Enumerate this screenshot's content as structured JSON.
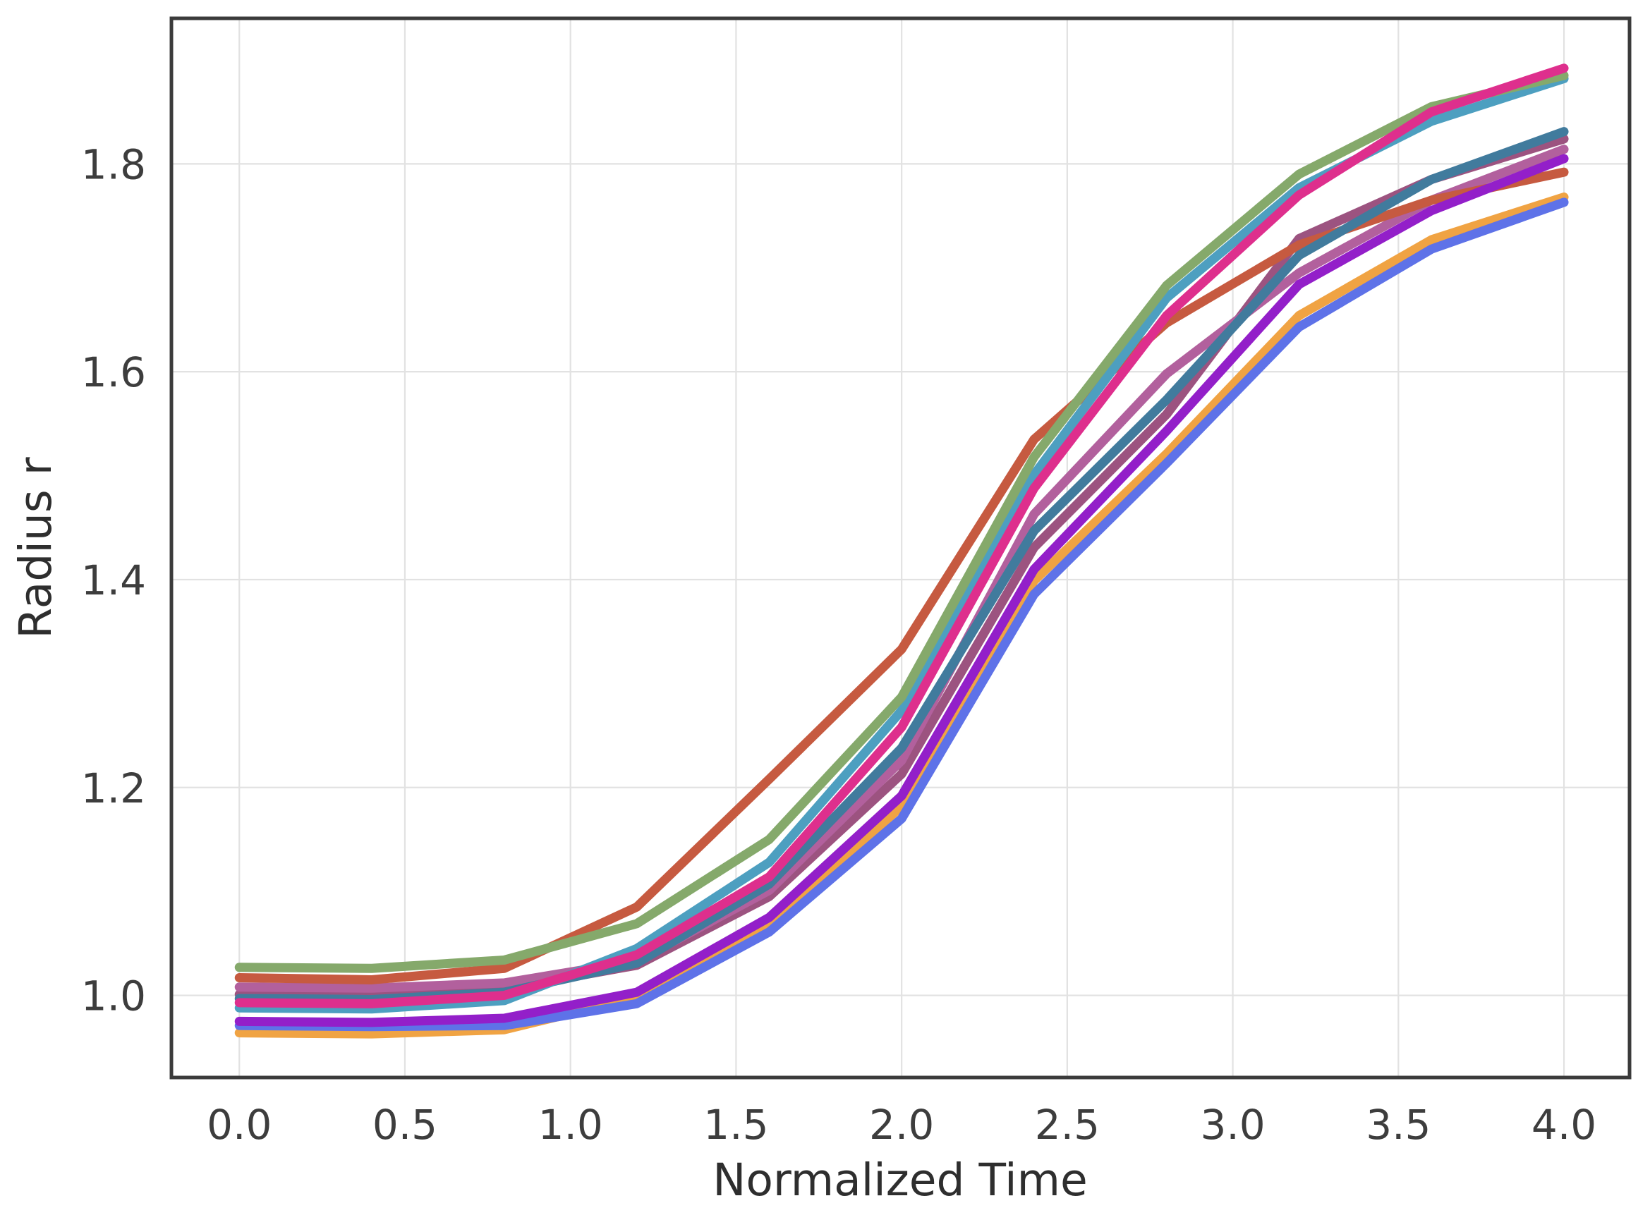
{
  "figure": {
    "background": "#ffffff"
  },
  "chart_data": {
    "type": "line",
    "title": "",
    "xlabel": "Normalized Time",
    "ylabel": "Radius r",
    "grid": true,
    "legend": "none",
    "xlim": [
      -0.205,
      4.198
    ],
    "ylim": [
      0.921,
      1.94
    ],
    "xticks": {
      "values": [
        0.0,
        0.5,
        1.0,
        1.5,
        2.0,
        2.5,
        3.0,
        3.5,
        4.0
      ],
      "labels": [
        "0.0",
        "0.5",
        "1.0",
        "1.5",
        "2.0",
        "2.5",
        "3.0",
        "3.5",
        "4.0"
      ]
    },
    "yticks": {
      "values": [
        1.0,
        1.2,
        1.4,
        1.6,
        1.8
      ],
      "labels": [
        "1.0",
        "1.2",
        "1.4",
        "1.6",
        "1.8"
      ]
    },
    "x": [
      0.0,
      0.4,
      0.8,
      1.2,
      1.6,
      2.0,
      2.4,
      2.8,
      3.2,
      3.6,
      4.0
    ],
    "series": [
      {
        "name": "amber",
        "color": "#f0a343",
        "values": [
          0.964,
          0.963,
          0.967,
          0.998,
          1.068,
          1.182,
          1.399,
          1.521,
          1.654,
          1.727,
          1.768
        ]
      },
      {
        "name": "cornflower-blue",
        "color": "#5e72e8",
        "values": [
          0.971,
          0.97,
          0.971,
          0.992,
          1.061,
          1.17,
          1.386,
          1.512,
          1.643,
          1.718,
          1.763
        ]
      },
      {
        "name": "puce",
        "color": "#9c5380",
        "values": [
          1.001,
          1.0,
          1.006,
          1.029,
          1.095,
          1.213,
          1.431,
          1.559,
          1.728,
          1.785,
          1.824
        ]
      },
      {
        "name": "rose-mauve",
        "color": "#b2609d",
        "values": [
          1.008,
          1.007,
          1.012,
          1.033,
          1.101,
          1.226,
          1.463,
          1.598,
          1.695,
          1.765,
          1.814
        ]
      },
      {
        "name": "vermillion",
        "color": "#c65a40",
        "values": [
          1.017,
          1.015,
          1.026,
          1.085,
          1.208,
          1.333,
          1.535,
          1.647,
          1.722,
          1.765,
          1.792
        ]
      },
      {
        "name": "steel-blue",
        "color": "#417b9d",
        "values": [
          0.997,
          0.996,
          1.003,
          1.031,
          1.107,
          1.238,
          1.447,
          1.573,
          1.712,
          1.785,
          1.831
        ]
      },
      {
        "name": "teal",
        "color": "#4d9fc0",
        "values": [
          0.988,
          0.987,
          0.995,
          1.045,
          1.128,
          1.274,
          1.501,
          1.671,
          1.777,
          1.841,
          1.882
        ]
      },
      {
        "name": "green",
        "color": "#85a96b",
        "values": [
          1.027,
          1.026,
          1.034,
          1.069,
          1.15,
          1.287,
          1.518,
          1.683,
          1.79,
          1.855,
          1.885
        ]
      },
      {
        "name": "magenta",
        "color": "#de2f8d",
        "values": [
          0.993,
          0.992,
          1.0,
          1.039,
          1.114,
          1.258,
          1.488,
          1.654,
          1.77,
          1.85,
          1.892
        ]
      },
      {
        "name": "violet",
        "color": "#931fc9",
        "values": [
          0.975,
          0.974,
          0.978,
          1.003,
          1.075,
          1.192,
          1.41,
          1.543,
          1.684,
          1.755,
          1.805
        ]
      }
    ],
    "style": {
      "grid_color": "#e2e2e2",
      "spine_color": "#3b3b3b",
      "tick_label_color": "#3d3d3d",
      "axis_label_color": "#2e2e2e",
      "line_width": 13
    }
  }
}
